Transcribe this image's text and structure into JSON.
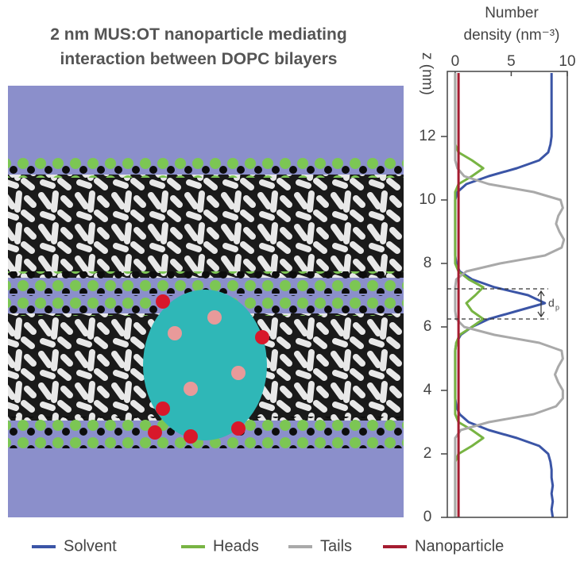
{
  "chart_data": {
    "type": "line",
    "title": [
      "2 nm MUS:OT nanoparticle mediating",
      "interaction between DOPC bilayers"
    ],
    "x_label": [
      "Number",
      "density (nm⁻³)"
    ],
    "y_label": "z (nm)",
    "xlim": [
      -0.7,
      10
    ],
    "xticks": [
      0,
      5,
      10
    ],
    "ylim": [
      0,
      14.05
    ],
    "yticks": [
      0,
      2,
      4,
      6,
      8,
      10,
      12
    ],
    "z": [
      0,
      0.25,
      0.5,
      0.75,
      1,
      1.25,
      1.5,
      1.75,
      2,
      2.25,
      2.5,
      2.75,
      3,
      3.25,
      3.5,
      3.75,
      4,
      4.25,
      4.5,
      4.75,
      5,
      5.25,
      5.5,
      5.75,
      6,
      6.25,
      6.5,
      6.75,
      7,
      7.25,
      7.5,
      7.75,
      8,
      8.25,
      8.5,
      8.75,
      9,
      9.25,
      9.5,
      9.75,
      10,
      10.25,
      10.5,
      10.75,
      11,
      11.25,
      11.5,
      11.75,
      12,
      12.25,
      12.5,
      12.75,
      13,
      13.25,
      13.5,
      13.75,
      14
    ],
    "series": [
      {
        "name": "Solvent",
        "color": "#3b55a6",
        "values": [
          8.7,
          8.6,
          8.7,
          8.6,
          8.7,
          8.6,
          8.6,
          8.5,
          8.3,
          7.5,
          5.5,
          3,
          1.2,
          0.4,
          0.1,
          0,
          0,
          0,
          0,
          0,
          0,
          0,
          0.1,
          0.5,
          1.5,
          3,
          5.5,
          8,
          6.5,
          3.5,
          1.5,
          0.4,
          0.1,
          0,
          0,
          0,
          0,
          0,
          0,
          0,
          0,
          0.2,
          1,
          3,
          5.5,
          7.5,
          8.3,
          8.5,
          8.6,
          8.6,
          8.6,
          8.6,
          8.6,
          8.6,
          8.6,
          8.6,
          8.6
        ]
      },
      {
        "name": "Heads",
        "color": "#78b443",
        "values": [
          0,
          0,
          0,
          0,
          0,
          0,
          0,
          0,
          0.3,
          1.5,
          2.5,
          1.5,
          0.3,
          0,
          0,
          0,
          0,
          0,
          0,
          0,
          0,
          0,
          0.1,
          0.4,
          1.5,
          2.5,
          1.5,
          1,
          1.8,
          2.5,
          1.2,
          0.3,
          0,
          0,
          0,
          0,
          0,
          0,
          0,
          0,
          0,
          0,
          0.3,
          1.5,
          2.5,
          1.5,
          0.3,
          0,
          0,
          0,
          0,
          0,
          0,
          0,
          0,
          0,
          0
        ]
      },
      {
        "name": "Tails",
        "color": "#a9a9a9",
        "values": [
          0,
          0,
          0,
          0,
          0,
          0,
          0,
          0,
          0,
          0,
          0,
          0.5,
          3,
          7,
          9,
          9.6,
          9.6,
          9.2,
          8.9,
          9.2,
          9.6,
          9.5,
          7.5,
          3.5,
          0.8,
          0.1,
          0,
          0,
          0,
          0,
          0.1,
          1,
          4,
          8,
          9.5,
          9.7,
          9.3,
          9,
          9.2,
          9.6,
          9.4,
          7,
          3,
          0.8,
          0.2,
          0,
          0,
          0,
          0,
          0,
          0,
          0,
          0,
          0,
          0,
          0,
          0
        ]
      },
      {
        "name": "Nanoparticle",
        "color": "#a51c30",
        "values": [
          0.3,
          0.3,
          0.3,
          0.3,
          0.3,
          0.3,
          0.3,
          0.3,
          0.3,
          0.3,
          0.3,
          0.3,
          0.3,
          0.3,
          0.3,
          0.3,
          0.3,
          0.3,
          0.3,
          0.3,
          0.3,
          0.3,
          0.3,
          0.3,
          0.3,
          0.3,
          0.3,
          0.3,
          0.3,
          0.3,
          0.3,
          0.3,
          0.3,
          0.3,
          0.3,
          0.3,
          0.3,
          0.3,
          0.3,
          0.3,
          0.3,
          0.3,
          0.3,
          0.3,
          0.3,
          0.3,
          0.3,
          0.3,
          0.3,
          0.3,
          0.3,
          0.3,
          0.3,
          0.3,
          0.3,
          0.3,
          0.3
        ]
      }
    ],
    "annotation": {
      "text": "d",
      "subscript": "p",
      "z": [
        6.25,
        7.2
      ]
    }
  }
}
